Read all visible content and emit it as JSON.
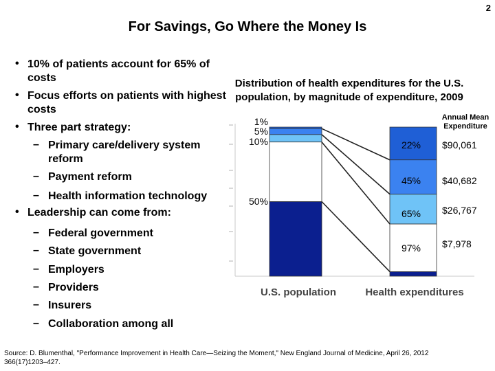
{
  "page_number": "2",
  "slide_title": "For Savings, Go Where the Money Is",
  "bullets": [
    {
      "text": "10% of patients account for 65% of costs"
    },
    {
      "text": "Focus efforts on patients with highest costs"
    },
    {
      "text": "Three part strategy:",
      "sub": [
        "Primary care/delivery system reform",
        "Payment reform",
        "Health information technology"
      ]
    },
    {
      "text": "Leadership can come from:",
      "sub": [
        "Federal government",
        "State government",
        "Employers",
        "Providers",
        "Insurers",
        "Collaboration among all"
      ]
    }
  ],
  "chart_data": {
    "type": "bar",
    "title": "Distribution of health expenditures for the U.S. population, by magnitude of expenditure, 2009",
    "categories": [
      "U.S. population",
      "Health expenditures"
    ],
    "cumulative_population_percent": [
      "1%",
      "5%",
      "10%",
      "50%"
    ],
    "population_shares": [
      1,
      4,
      5,
      40,
      50
    ],
    "expenditure_shares": [
      22,
      23,
      20,
      32,
      3
    ],
    "cumulative_expenditure_percent": [
      "22%",
      "45%",
      "65%",
      "97%"
    ],
    "annual_mean_header": "Annual Mean Expenditure",
    "annual_mean_expenditure": [
      "$90,061",
      "$40,682",
      "$26,767",
      "$7,978"
    ],
    "segment_colors": [
      "#1f5fd6",
      "#3b82f0",
      "#6fc3f7",
      "#ffffff",
      "#0b1f8f"
    ],
    "ylim": [
      0,
      100
    ],
    "grid": false
  },
  "source": "Source: D. Blumenthal, \"Performance Improvement in Health Care—Seizing the Moment,\" New England Journal of Medicine, April 26, 2012 366(17)1203–427."
}
